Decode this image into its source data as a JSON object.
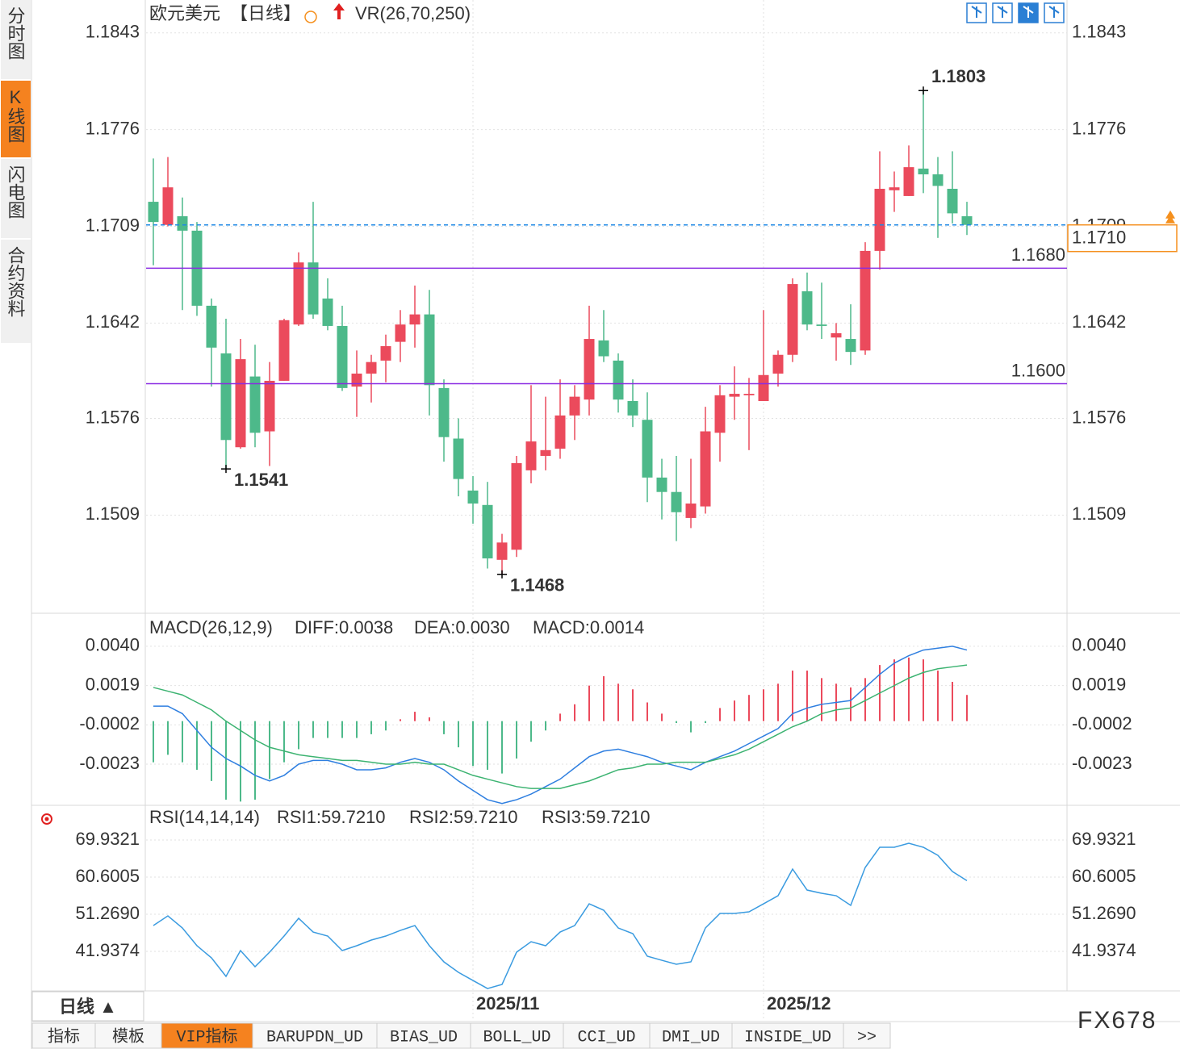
{
  "sidebar_tabs": [
    "分时图",
    "K线图",
    "闪电图",
    "合约资料"
  ],
  "active_sidebar_tab": 1,
  "toolbar_icon_color": "#2a7fd4",
  "chart_data": [
    {
      "type": "candlestick",
      "title": "欧元美元",
      "period": "【日线】",
      "indicator": "VR(26,70,250)",
      "categories": [
        null,
        null,
        null,
        null,
        null,
        null,
        null,
        null,
        null,
        null,
        null,
        null,
        null,
        null,
        null,
        null,
        null,
        null,
        null,
        null,
        null,
        null,
        "2025/11",
        null,
        null,
        null,
        null,
        null,
        null,
        null,
        null,
        null,
        null,
        null,
        null,
        null,
        null,
        null,
        null,
        null,
        null,
        null,
        "2025/12",
        null,
        null,
        null,
        null,
        null,
        null,
        null,
        null,
        null,
        null,
        null,
        null,
        null,
        null
      ],
      "open": [
        1.1726,
        1.171,
        1.1716,
        1.1706,
        1.1654,
        1.1621,
        1.1556,
        1.1605,
        1.1567,
        1.1602,
        1.1641,
        1.1684,
        1.1659,
        1.164,
        1.1598,
        1.1607,
        1.1616,
        1.1629,
        1.1641,
        1.1648,
        1.1597,
        1.1562,
        1.1526,
        1.1516,
        1.1478,
        1.1485,
        1.154,
        1.155,
        1.1555,
        1.1578,
        1.1589,
        1.163,
        1.1616,
        1.1588,
        1.1575,
        1.1535,
        1.1525,
        1.1507,
        1.1515,
        1.1566,
        1.1591,
        1.1592,
        1.1588,
        1.1607,
        1.162,
        1.1664,
        1.1641,
        1.1632,
        1.1631,
        1.1623,
        1.1692,
        1.1734,
        1.173,
        1.1749,
        1.1745,
        1.1735,
        1.1716
      ],
      "high": [
        1.1756,
        1.1757,
        1.1729,
        1.1712,
        1.1659,
        1.1645,
        1.1631,
        1.1627,
        1.1615,
        1.1645,
        1.1691,
        1.1726,
        1.1673,
        1.1654,
        1.1623,
        1.162,
        1.1634,
        1.1651,
        1.1668,
        1.1665,
        1.1603,
        1.1576,
        1.1536,
        1.1532,
        1.1496,
        1.155,
        1.1599,
        1.1591,
        1.1603,
        1.1599,
        1.1654,
        1.1651,
        1.1621,
        1.1603,
        1.1594,
        1.1548,
        1.155,
        1.1548,
        1.1584,
        1.1599,
        1.1612,
        1.1604,
        1.1651,
        1.1623,
        1.1673,
        1.1677,
        1.167,
        1.1642,
        1.1655,
        1.1698,
        1.1761,
        1.1747,
        1.1765,
        1.1803,
        1.1757,
        1.1761,
        1.1726
      ],
      "low": [
        1.1682,
        1.1709,
        1.1651,
        1.1647,
        1.1598,
        1.1541,
        1.1555,
        1.1556,
        1.1543,
        1.1602,
        1.164,
        1.1645,
        1.1637,
        1.1595,
        1.1577,
        1.1587,
        1.1601,
        1.1615,
        1.1625,
        1.1578,
        1.1546,
        1.1522,
        1.1503,
        1.1472,
        1.1468,
        1.148,
        1.1531,
        1.154,
        1.1548,
        1.1561,
        1.1578,
        1.1615,
        1.158,
        1.157,
        1.1518,
        1.1506,
        1.1491,
        1.15,
        1.151,
        1.1546,
        1.1575,
        1.1554,
        1.1588,
        1.1598,
        1.1615,
        1.1637,
        1.1631,
        1.1616,
        1.1613,
        1.162,
        1.1679,
        1.1719,
        1.173,
        1.1732,
        1.1701,
        1.1711,
        1.1703
      ],
      "close": [
        1.1712,
        1.1736,
        1.1706,
        1.1654,
        1.1625,
        1.1561,
        1.1617,
        1.1566,
        1.1602,
        1.1644,
        1.1684,
        1.1648,
        1.164,
        1.1597,
        1.1607,
        1.1615,
        1.1626,
        1.1641,
        1.1648,
        1.1599,
        1.1563,
        1.1534,
        1.1517,
        1.1479,
        1.149,
        1.1545,
        1.156,
        1.1554,
        1.1578,
        1.1591,
        1.1631,
        1.1619,
        1.1589,
        1.1578,
        1.1535,
        1.1525,
        1.1511,
        1.1517,
        1.1567,
        1.1592,
        1.1593,
        1.1593,
        1.1606,
        1.162,
        1.1669,
        1.1641,
        1.164,
        1.1635,
        1.1622,
        1.1692,
        1.1735,
        1.1736,
        1.175,
        1.1745,
        1.1737,
        1.1718,
        1.171
      ],
      "up_color": "#eb4a5c",
      "down_color": "#4db98a",
      "ylim": [
        1.1441,
        1.1849
      ],
      "yticks": [
        1.1843,
        1.1776,
        1.1709,
        1.1642,
        1.1576,
        1.1509
      ],
      "grid": true,
      "last_price": {
        "value": 1.171,
        "label": "1.1710",
        "color": "#1e88e5",
        "label_color": "#f5901e"
      },
      "hlines": [
        {
          "value": 1.168,
          "label": "1.1680",
          "color": "#8a2be2"
        },
        {
          "value": 1.16,
          "label": "1.1600",
          "color": "#8a2be2"
        }
      ],
      "annotations": [
        {
          "at": "high",
          "value": 1.1803,
          "color": "#eb4a5c"
        },
        {
          "at": "low",
          "value": 1.1541,
          "color": "#4db98a"
        },
        {
          "at": "low",
          "value": 1.1468,
          "color": "#4db98a"
        }
      ]
    },
    {
      "type": "macd",
      "title": "MACD(26,12,9)",
      "legend": [
        {
          "label": "DIFF:0.0038",
          "color": "#3a8ee6"
        },
        {
          "label": "DEA:0.0030",
          "color": "#4dbb84"
        },
        {
          "label": "MACD:0.0014",
          "color": "#5cc2ee"
        }
      ],
      "series": [
        {
          "color": "#2f7fe0",
          "values": [
            0.0008,
            0.0008,
            0.0004,
            -0.0005,
            -0.0014,
            -0.002,
            -0.0024,
            -0.0029,
            -0.0032,
            -0.0029,
            -0.0023,
            -0.0021,
            -0.0021,
            -0.0023,
            -0.0026,
            -0.0026,
            -0.0025,
            -0.0022,
            -0.002,
            -0.0022,
            -0.0026,
            -0.0032,
            -0.0037,
            -0.0042,
            -0.0044,
            -0.0042,
            -0.0039,
            -0.0035,
            -0.0031,
            -0.0025,
            -0.0019,
            -0.0016,
            -0.0015,
            -0.0017,
            -0.0019,
            -0.0022,
            -0.0024,
            -0.0026,
            -0.0022,
            -0.0019,
            -0.0016,
            -0.0012,
            -0.0008,
            -0.0004,
            0.0004,
            0.0007,
            0.0009,
            0.001,
            0.0011,
            0.0018,
            0.0025,
            0.0031,
            0.0035,
            0.0038,
            0.0039,
            0.004,
            0.0038
          ]
        },
        {
          "color": "#3cb371",
          "values": [
            0.0018,
            0.0016,
            0.0014,
            0.001,
            0.0006,
            0.0,
            -0.0005,
            -0.001,
            -0.0014,
            -0.0016,
            -0.0018,
            -0.0019,
            -0.002,
            -0.0021,
            -0.0021,
            -0.0022,
            -0.0023,
            -0.0023,
            -0.0022,
            -0.0023,
            -0.0023,
            -0.0026,
            -0.0029,
            -0.0031,
            -0.0033,
            -0.0035,
            -0.0036,
            -0.0036,
            -0.0036,
            -0.0034,
            -0.0032,
            -0.0029,
            -0.0026,
            -0.0025,
            -0.0023,
            -0.0023,
            -0.0022,
            -0.0022,
            -0.0022,
            -0.002,
            -0.0018,
            -0.0015,
            -0.0011,
            -0.0007,
            -0.0003,
            0.0,
            0.0004,
            0.0006,
            0.0007,
            0.0011,
            0.0015,
            0.0019,
            0.0023,
            0.0026,
            0.0028,
            0.0029,
            0.003
          ]
        }
      ],
      "histogram": {
        "up_color": "#eb4a5c",
        "down_color": "#4db98a",
        "values": [
          -0.0022,
          -0.0018,
          -0.0022,
          -0.0026,
          -0.0032,
          -0.0042,
          -0.0043,
          -0.0042,
          -0.0031,
          -0.0022,
          -0.0015,
          -0.0009,
          -0.0009,
          -0.0009,
          -0.0009,
          -0.0007,
          -0.0005,
          0.0001,
          0.0005,
          0.0002,
          -0.0007,
          -0.0014,
          -0.0024,
          -0.0026,
          -0.0028,
          -0.002,
          -0.0011,
          -0.0005,
          0.0004,
          0.0009,
          0.0019,
          0.0024,
          0.002,
          0.0017,
          0.001,
          0.0004,
          -0.0001,
          -0.0006,
          -0.0001,
          0.0007,
          0.0011,
          0.0014,
          0.0017,
          0.002,
          0.0027,
          0.0027,
          0.0023,
          0.002,
          0.0018,
          0.0023,
          0.003,
          0.0033,
          0.0034,
          0.0033,
          0.0027,
          0.0021,
          0.0014
        ]
      },
      "ylim": [
        -0.0045,
        0.00555
      ],
      "yticks": [
        {
          "value": 0.004,
          "label": "0.0040"
        },
        0.0019,
        -0.0002,
        -0.0023
      ],
      "grid": true
    },
    {
      "type": "line",
      "title": "RSI(14,14,14)",
      "legend": [
        {
          "label": "RSI1:59.7210",
          "color": "#3a8ee6"
        },
        {
          "label": "RSI2:59.7210",
          "color": "#4dbb84"
        },
        {
          "label": "RSI3:59.7210",
          "color": "#5cc2ee"
        }
      ],
      "series": [
        {
          "color": "#3a9be0",
          "values": [
            48.43,
            50.86,
            47.82,
            43.36,
            40.31,
            35.65,
            42.14,
            38.08,
            41.73,
            45.79,
            50.25,
            46.8,
            45.79,
            42.14,
            43.36,
            44.78,
            45.79,
            47.21,
            48.43,
            43.36,
            39.3,
            36.66,
            34.63,
            32.6,
            33.62,
            41.73,
            44.37,
            43.36,
            46.8,
            48.43,
            53.9,
            52.28,
            47.82,
            46.4,
            40.72,
            39.7,
            38.69,
            39.3,
            47.82,
            51.47,
            51.47,
            51.88,
            53.9,
            55.93,
            62.63,
            57.35,
            56.54,
            55.93,
            53.5,
            63.03,
            68.11,
            68.11,
            69.12,
            68.11,
            66.08,
            62.02,
            59.721
          ]
        }
      ],
      "ylim": [
        32.0,
        78.25
      ],
      "yticks": [
        69.9321,
        60.6005,
        {
          "value": 51.269,
          "label": "51.2690"
        },
        41.9374
      ],
      "grid": true
    }
  ],
  "footer": {
    "period_button": "日线 ▲",
    "tabs": [
      "指标",
      "模板",
      "VIP指标",
      "BARUPDN_UD",
      "BIAS_UD",
      "BOLL_UD",
      "CCI_UD",
      "DMI_UD",
      "INSIDE_UD",
      ">>"
    ],
    "active_tab": 2,
    "accent": "#f5821f"
  },
  "watermark": "FX678"
}
